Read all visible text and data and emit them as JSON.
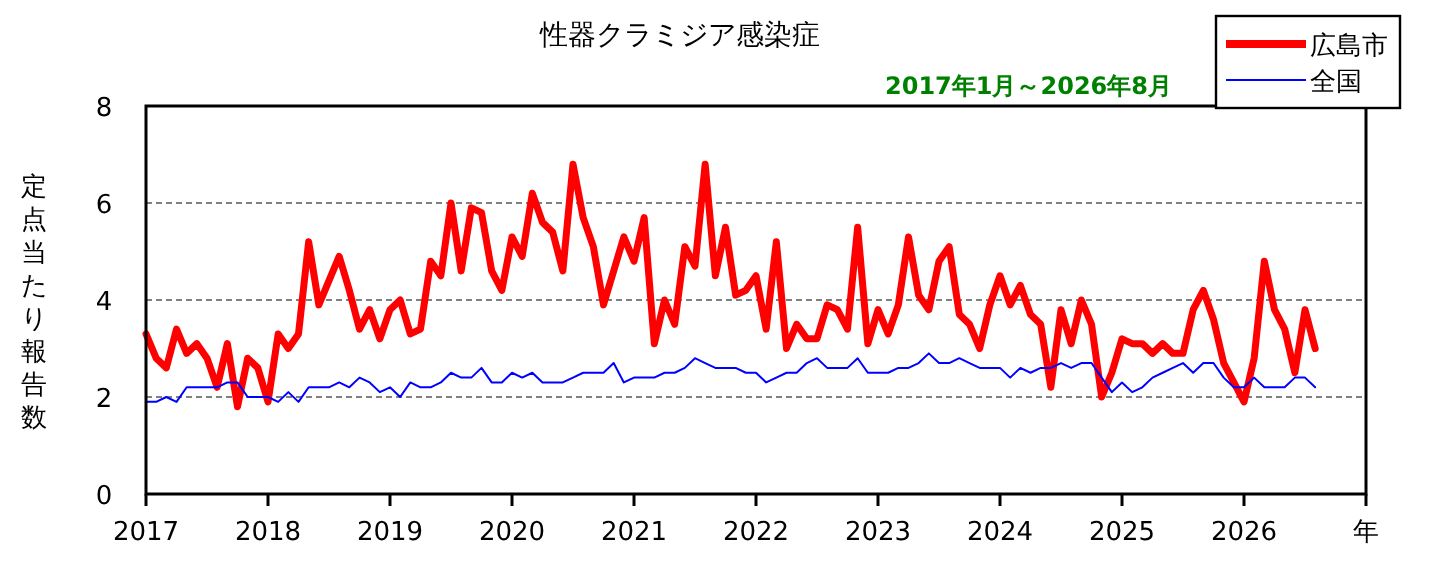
{
  "chart_data": {
    "type": "line",
    "title": "性器クラミジア感染症",
    "subtitle": "2017年1月～2026年8月",
    "ylabel": "定点当たり報告数",
    "x": [
      "2017-01",
      "2017-02",
      "2017-03",
      "2017-04",
      "2017-05",
      "2017-06",
      "2017-07",
      "2017-08",
      "2017-09",
      "2017-10",
      "2017-11",
      "2017-12",
      "2018-01",
      "2018-02",
      "2018-03",
      "2018-04",
      "2018-05",
      "2018-06",
      "2018-07",
      "2018-08",
      "2018-09",
      "2018-10",
      "2018-11",
      "2018-12",
      "2019-01",
      "2019-02",
      "2019-03",
      "2019-04",
      "2019-05",
      "2019-06",
      "2019-07",
      "2019-08",
      "2019-09",
      "2019-10",
      "2019-11",
      "2019-12",
      "2020-01",
      "2020-02",
      "2020-03",
      "2020-04",
      "2020-05",
      "2020-06",
      "2020-07",
      "2020-08",
      "2020-09",
      "2020-10",
      "2020-11",
      "2020-12",
      "2021-01",
      "2021-02",
      "2021-03",
      "2021-04",
      "2021-05",
      "2021-06",
      "2021-07",
      "2021-08",
      "2021-09",
      "2021-10",
      "2021-11",
      "2021-12",
      "2022-01",
      "2022-02",
      "2022-03",
      "2022-04",
      "2022-05",
      "2022-06",
      "2022-07",
      "2022-08",
      "2022-09",
      "2022-10",
      "2022-11",
      "2022-12",
      "2023-01",
      "2023-02",
      "2023-03",
      "2023-04",
      "2023-05",
      "2023-06",
      "2023-07",
      "2023-08",
      "2023-09",
      "2023-10",
      "2023-11",
      "2023-12",
      "2024-01",
      "2024-02",
      "2024-03",
      "2024-04",
      "2024-05",
      "2024-06",
      "2024-07",
      "2024-08",
      "2024-09",
      "2024-10",
      "2024-11",
      "2024-12",
      "2025-01",
      "2025-02",
      "2025-03",
      "2025-04",
      "2025-05",
      "2025-06",
      "2025-07",
      "2025-08",
      "2025-09",
      "2025-10",
      "2025-11",
      "2025-12",
      "2026-01",
      "2026-02",
      "2026-03",
      "2026-04",
      "2026-05",
      "2026-06",
      "2026-07",
      "2026-08"
    ],
    "series": [
      {
        "name": "広島市",
        "color": "#ff0000",
        "values": [
          3.3,
          2.8,
          2.6,
          3.4,
          2.9,
          3.1,
          2.8,
          2.2,
          3.1,
          1.8,
          2.8,
          2.6,
          1.9,
          3.3,
          3.0,
          3.3,
          5.2,
          3.9,
          4.4,
          4.9,
          4.2,
          3.4,
          3.8,
          3.2,
          3.8,
          4.0,
          3.3,
          3.4,
          4.8,
          4.5,
          6.0,
          4.6,
          5.9,
          5.8,
          4.6,
          4.2,
          5.3,
          4.9,
          6.2,
          5.6,
          5.4,
          4.6,
          6.8,
          5.7,
          5.1,
          3.9,
          4.6,
          5.3,
          4.8,
          5.7,
          3.1,
          4.0,
          3.5,
          5.1,
          4.7,
          6.8,
          4.5,
          5.5,
          4.1,
          4.2,
          4.5,
          3.4,
          5.2,
          3.0,
          3.5,
          3.2,
          3.2,
          3.9,
          3.8,
          3.4,
          5.5,
          3.1,
          3.8,
          3.3,
          3.9,
          5.3,
          4.1,
          3.8,
          4.8,
          5.1,
          3.7,
          3.5,
          3.0,
          3.9,
          4.5,
          3.9,
          4.3,
          3.7,
          3.5,
          2.2,
          3.8,
          3.1,
          4.0,
          3.5,
          2.0,
          2.5,
          3.2,
          3.1,
          3.1,
          2.9,
          3.1,
          2.9,
          2.9,
          3.8,
          4.2,
          3.6,
          2.7,
          2.3,
          1.9,
          2.8,
          4.8,
          3.8,
          3.4,
          2.5,
          3.8,
          3.0
        ]
      },
      {
        "name": "全国",
        "color": "#0000ff",
        "values": [
          1.9,
          1.9,
          2.0,
          1.9,
          2.2,
          2.2,
          2.2,
          2.2,
          2.3,
          2.3,
          2.0,
          2.0,
          2.0,
          1.9,
          2.1,
          1.9,
          2.2,
          2.2,
          2.2,
          2.3,
          2.2,
          2.4,
          2.3,
          2.1,
          2.2,
          2.0,
          2.3,
          2.2,
          2.2,
          2.3,
          2.5,
          2.4,
          2.4,
          2.6,
          2.3,
          2.3,
          2.5,
          2.4,
          2.5,
          2.3,
          2.3,
          2.3,
          2.4,
          2.5,
          2.5,
          2.5,
          2.7,
          2.3,
          2.4,
          2.4,
          2.4,
          2.5,
          2.5,
          2.6,
          2.8,
          2.7,
          2.6,
          2.6,
          2.6,
          2.5,
          2.5,
          2.3,
          2.4,
          2.5,
          2.5,
          2.7,
          2.8,
          2.6,
          2.6,
          2.6,
          2.8,
          2.5,
          2.5,
          2.5,
          2.6,
          2.6,
          2.7,
          2.9,
          2.7,
          2.7,
          2.8,
          2.7,
          2.6,
          2.6,
          2.6,
          2.4,
          2.6,
          2.5,
          2.6,
          2.6,
          2.7,
          2.6,
          2.7,
          2.7,
          2.4,
          2.1,
          2.3,
          2.1,
          2.2,
          2.4,
          2.5,
          2.6,
          2.7,
          2.5,
          2.7,
          2.7,
          2.4,
          2.2,
          2.2,
          2.4,
          2.2,
          2.2,
          2.2,
          2.4,
          2.4,
          2.2
        ]
      }
    ],
    "xlim": [
      "2017-01",
      "2027-01"
    ],
    "xticks": [
      {
        "value": "2017-01",
        "label": "2017"
      },
      {
        "value": "2018-01",
        "label": "2018"
      },
      {
        "value": "2019-01",
        "label": "2019"
      },
      {
        "value": "2020-01",
        "label": "2020"
      },
      {
        "value": "2021-01",
        "label": "2021"
      },
      {
        "value": "2022-01",
        "label": "2022"
      },
      {
        "value": "2023-01",
        "label": "2023"
      },
      {
        "value": "2024-01",
        "label": "2024"
      },
      {
        "value": "2025-01",
        "label": "2025"
      },
      {
        "value": "2026-01",
        "label": "2026"
      },
      {
        "value": "2027-01",
        "label": "年"
      }
    ],
    "ylim": [
      0,
      8
    ],
    "yticks": [
      0,
      2,
      4,
      6,
      8
    ],
    "grid": "y",
    "legend": "top right",
    "marker": "none",
    "line_style": "solid"
  }
}
